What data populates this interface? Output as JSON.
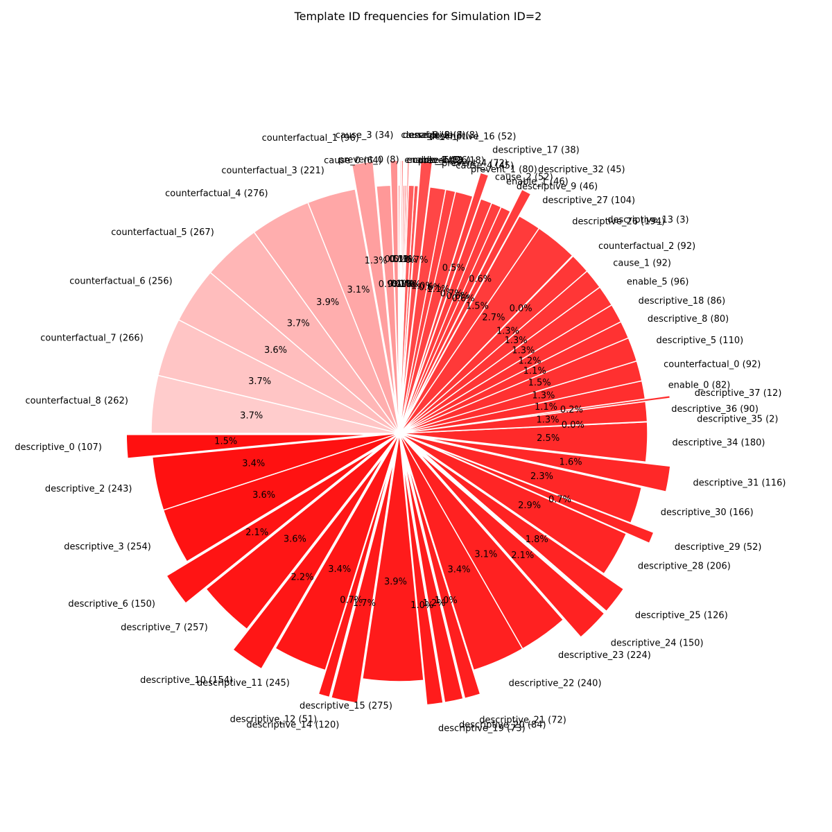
{
  "chart_data": {
    "type": "pie",
    "title": "Template ID frequencies for Simulation ID=2",
    "slices": [
      {
        "label": "descriptive_0",
        "value": 107,
        "pct": "1.5%",
        "explode": true
      },
      {
        "label": "descriptive_2",
        "value": 243,
        "pct": "3.4%",
        "explode": false
      },
      {
        "label": "descriptive_3",
        "value": 254,
        "pct": "3.6%",
        "explode": false
      },
      {
        "label": "descriptive_6",
        "value": 150,
        "pct": "2.1%",
        "explode": true
      },
      {
        "label": "descriptive_7",
        "value": 257,
        "pct": "3.6%",
        "explode": false
      },
      {
        "label": "descriptive_10",
        "value": 154,
        "pct": "2.2%",
        "explode": true
      },
      {
        "label": "descriptive_11",
        "value": 245,
        "pct": "3.4%",
        "explode": false
      },
      {
        "label": "descriptive_12",
        "value": 51,
        "pct": "0.7%",
        "explode": true
      },
      {
        "label": "descriptive_14",
        "value": 120,
        "pct": "1.7%",
        "explode": true
      },
      {
        "label": "descriptive_15",
        "value": 275,
        "pct": "3.9%",
        "explode": false
      },
      {
        "label": "descriptive_19",
        "value": 73,
        "pct": "1.0%",
        "explode": true
      },
      {
        "label": "descriptive_20",
        "value": 84,
        "pct": "1.2%",
        "explode": true
      },
      {
        "label": "descriptive_21",
        "value": 72,
        "pct": "1.0%",
        "explode": true
      },
      {
        "label": "descriptive_22",
        "value": 240,
        "pct": "3.4%",
        "explode": false
      },
      {
        "label": "descriptive_23",
        "value": 224,
        "pct": "3.1%",
        "explode": false
      },
      {
        "label": "descriptive_24",
        "value": 150,
        "pct": "2.1%",
        "explode": true
      },
      {
        "label": "descriptive_25",
        "value": 126,
        "pct": "1.8%",
        "explode": true
      },
      {
        "label": "descriptive_28",
        "value": 206,
        "pct": "2.9%",
        "explode": false
      },
      {
        "label": "descriptive_29",
        "value": 52,
        "pct": "0.7%",
        "explode": true
      },
      {
        "label": "descriptive_30",
        "value": 166,
        "pct": "2.3%",
        "explode": false
      },
      {
        "label": "descriptive_31",
        "value": 116,
        "pct": "1.6%",
        "explode": true
      },
      {
        "label": "descriptive_34",
        "value": 180,
        "pct": "2.5%",
        "explode": false
      },
      {
        "label": "descriptive_35",
        "value": 2,
        "pct": "0.0%",
        "explode": true
      },
      {
        "label": "descriptive_36",
        "value": 90,
        "pct": "1.3%",
        "explode": false
      },
      {
        "label": "descriptive_37",
        "value": 12,
        "pct": "0.2%",
        "explode": true
      },
      {
        "label": "enable_0",
        "value": 82,
        "pct": "1.1%",
        "explode": false
      },
      {
        "label": "counterfactual_0",
        "value": 92,
        "pct": "1.3%",
        "explode": false
      },
      {
        "label": "descriptive_5",
        "value": 110,
        "pct": "1.5%",
        "explode": false
      },
      {
        "label": "descriptive_8",
        "value": 80,
        "pct": "1.1%",
        "explode": false
      },
      {
        "label": "descriptive_18",
        "value": 86,
        "pct": "1.2%",
        "explode": false
      },
      {
        "label": "enable_5",
        "value": 96,
        "pct": "1.3%",
        "explode": false
      },
      {
        "label": "cause_1",
        "value": 92,
        "pct": "1.3%",
        "explode": false
      },
      {
        "label": "counterfactual_2",
        "value": 92,
        "pct": "1.3%",
        "explode": false
      },
      {
        "label": "descriptive_13",
        "value": 3,
        "pct": "0.0%",
        "explode": true
      },
      {
        "label": "descriptive_26",
        "value": 194,
        "pct": "2.7%",
        "explode": false
      },
      {
        "label": "descriptive_27",
        "value": 104,
        "pct": "1.5%",
        "explode": false
      },
      {
        "label": "descriptive_32",
        "value": 45,
        "pct": "0.6%",
        "explode": true
      },
      {
        "label": "descriptive_9",
        "value": 46,
        "pct": "0.6%",
        "explode": false
      },
      {
        "label": "enable_1",
        "value": 46,
        "pct": "0.6%",
        "explode": false
      },
      {
        "label": "cause_2",
        "value": 52,
        "pct": "0.7%",
        "explode": false
      },
      {
        "label": "descriptive_17",
        "value": 38,
        "pct": "0.5%",
        "explode": true
      },
      {
        "label": "prevent_1",
        "value": 80,
        "pct": "1.1%",
        "explode": false
      },
      {
        "label": "cause_4",
        "value": 45,
        "pct": "0.6%",
        "explode": false
      },
      {
        "label": "prevent_4",
        "value": 72,
        "pct": "1.0%",
        "explode": false
      },
      {
        "label": "descriptive_16",
        "value": 52,
        "pct": "0.7%",
        "explode": true
      },
      {
        "label": "prevent_3",
        "value": 18,
        "pct": "0.3%",
        "explode": false
      },
      {
        "label": "cause_5",
        "value": 26,
        "pct": "0.4%",
        "explode": false
      },
      {
        "label": "enable_2",
        "value": 8,
        "pct": "0.1%",
        "explode": true
      },
      {
        "label": "enable_3",
        "value": 8,
        "pct": "0.1%",
        "explode": false
      },
      {
        "label": "enable_4",
        "value": 8,
        "pct": "0.1%",
        "explode": false
      },
      {
        "label": "descriptive_4",
        "value": 8,
        "pct": "0.1%",
        "explode": true
      },
      {
        "label": "cause_6",
        "value": 6,
        "pct": "0.1%",
        "explode": true
      },
      {
        "label": "prevent_0",
        "value": 8,
        "pct": "0.1%",
        "explode": false
      },
      {
        "label": "cause_3",
        "value": 34,
        "pct": "0.5%",
        "explode": true
      },
      {
        "label": "cause_0",
        "value": 64,
        "pct": "0.9%",
        "explode": false
      },
      {
        "label": "counterfactual_1",
        "value": 96,
        "pct": "1.3%",
        "explode": true
      },
      {
        "label": "counterfactual_3",
        "value": 221,
        "pct": "3.1%",
        "explode": false
      },
      {
        "label": "counterfactual_4",
        "value": 276,
        "pct": "3.9%",
        "explode": false
      },
      {
        "label": "counterfactual_5",
        "value": 267,
        "pct": "3.7%",
        "explode": false
      },
      {
        "label": "counterfactual_6",
        "value": 256,
        "pct": "3.6%",
        "explode": false
      },
      {
        "label": "counterfactual_7",
        "value": 266,
        "pct": "3.7%",
        "explode": false
      },
      {
        "label": "counterfactual_8",
        "value": 262,
        "pct": "3.7%",
        "explode": false
      }
    ],
    "start_angle_deg": 180,
    "direction": "counterclockwise",
    "color_start": "#ff1010",
    "color_mid": "#ff4444",
    "color_end": "#ffcccc",
    "edge_color": "#ffffff"
  }
}
